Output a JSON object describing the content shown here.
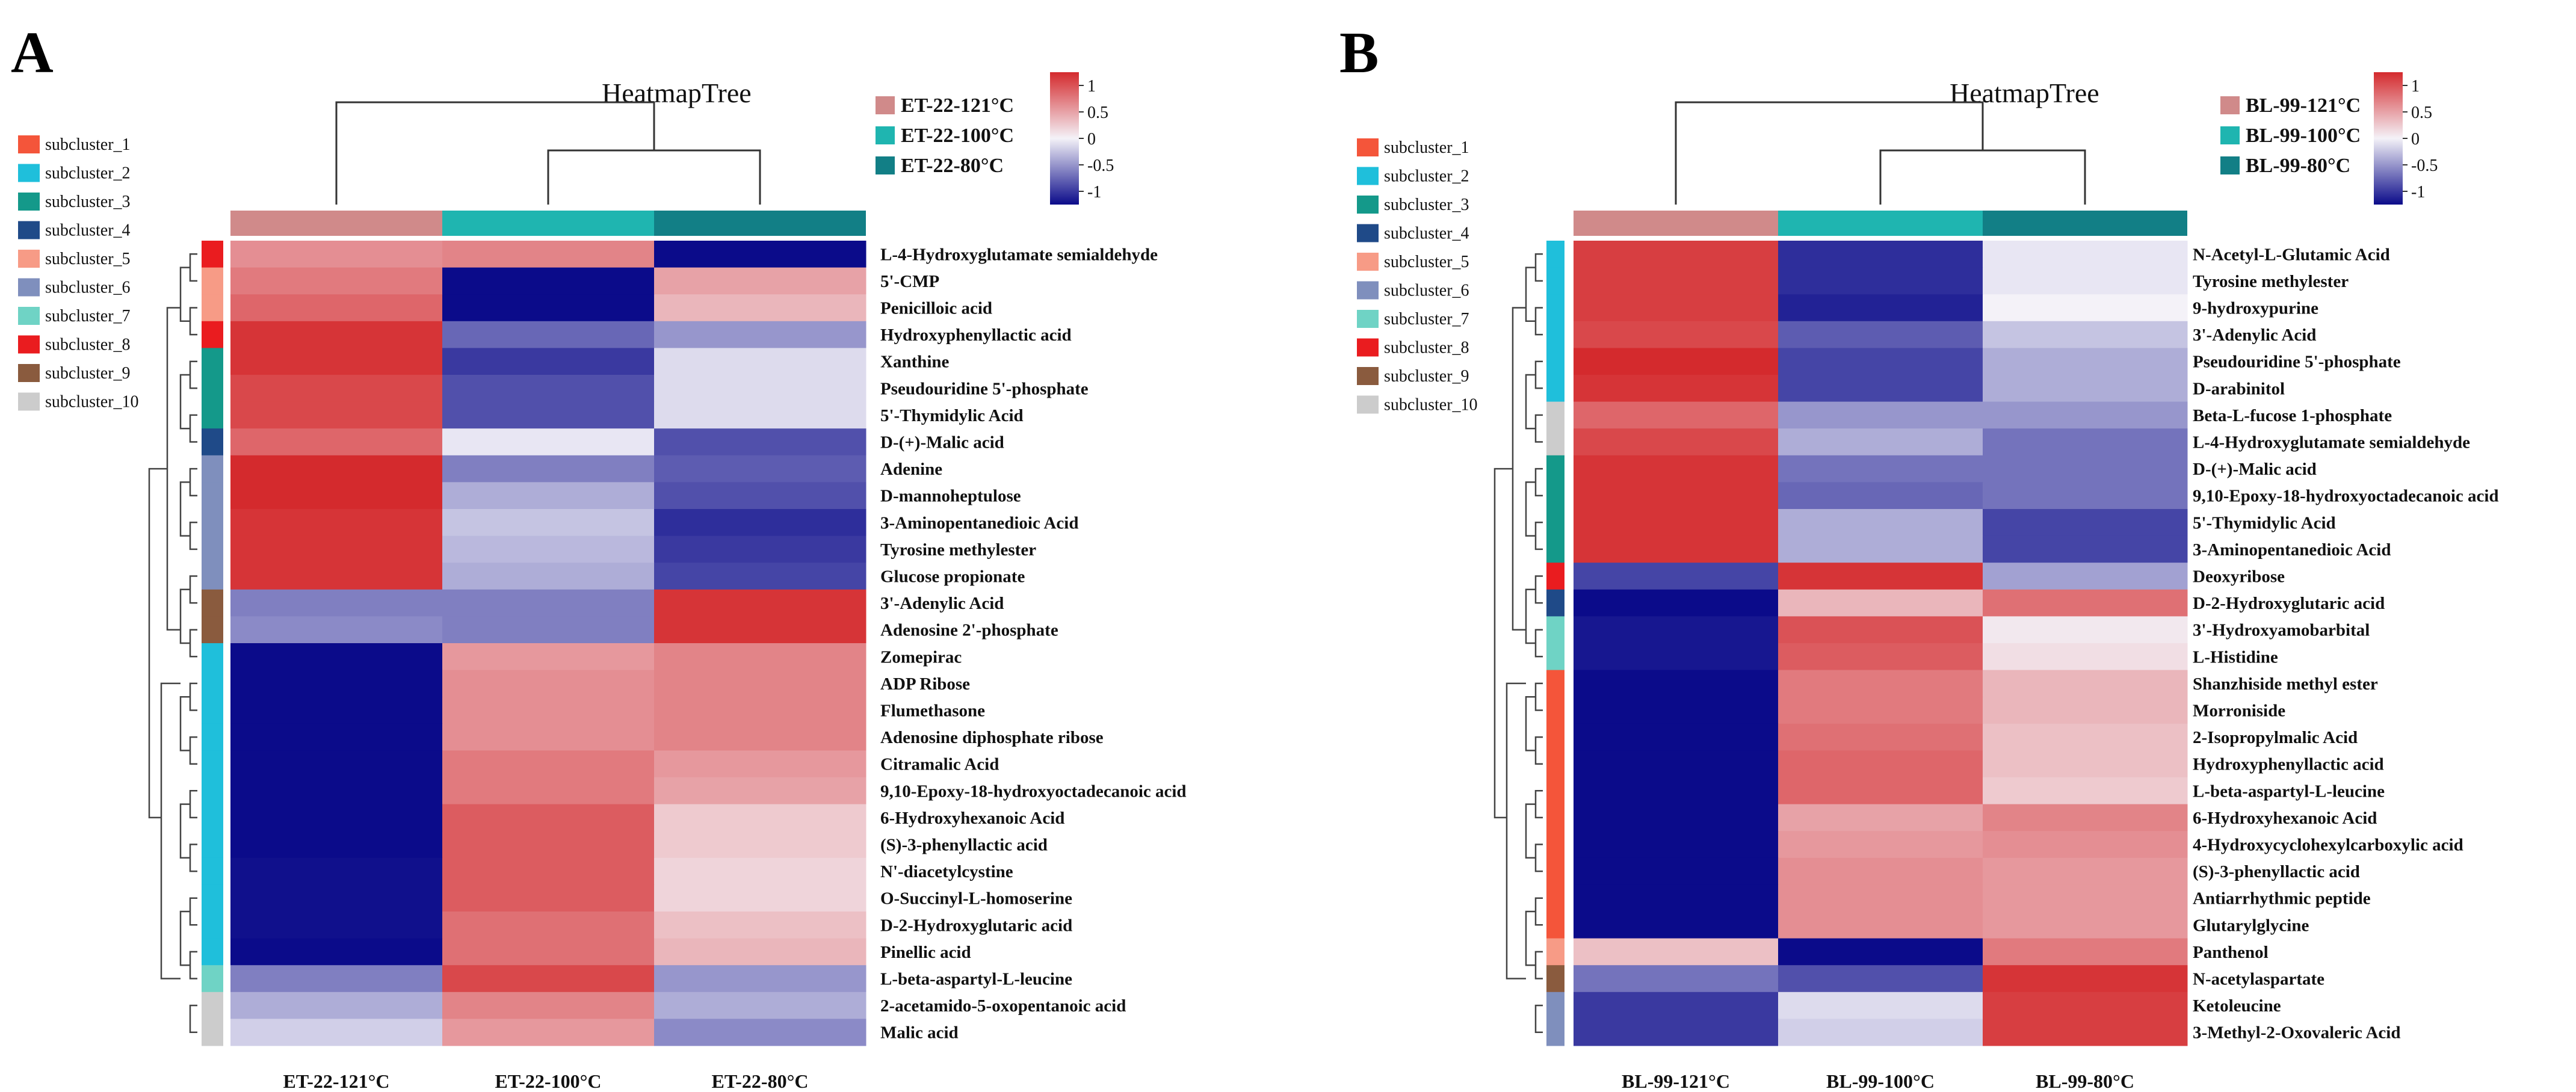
{
  "colors": {
    "high": "#d42a2d",
    "mid": "#f4f2f8",
    "low": "#0b0b8a"
  },
  "subcluster_colors": [
    "#f4553a",
    "#1fbfdb",
    "#14998a",
    "#1f4a88",
    "#f79b86",
    "#7f8fbd",
    "#6fd3c5",
    "#ea1c1f",
    "#8a5b3e",
    "#cccccc"
  ],
  "chart_data": [
    {
      "type": "heatmap",
      "panel_letter": "A",
      "title": "HeatmapTree",
      "color_scale": {
        "min": -1,
        "max": 1,
        "ticks": [
          "1",
          "0.5",
          "0",
          "-0.5",
          "-1"
        ]
      },
      "legend_groups": [
        "ET-22-121°C",
        "ET-22-100°C",
        "ET-22-80°C"
      ],
      "group_colors": [
        "#d08a8a",
        "#1fb5b0",
        "#127f86"
      ],
      "subcluster_labels": [
        "subcluster_1",
        "subcluster_2",
        "subcluster_3",
        "subcluster_4",
        "subcluster_5",
        "subcluster_6",
        "subcluster_7",
        "subcluster_8",
        "subcluster_9",
        "subcluster_10"
      ],
      "columns": [
        "ET-22-121°C",
        "ET-22-100°C",
        "ET-22-80°C"
      ],
      "rows": [
        "L-4-Hydroxyglutamate semialdehyde",
        "5'-CMP",
        "Penicilloic acid",
        "Hydroxyphenyllactic acid",
        "Xanthine",
        "Pseudouridine 5'-phosphate",
        "5'-Thymidylic Acid",
        "D-(+)-Malic acid",
        "Adenine",
        "D-mannoheptulose",
        "3-Aminopentanedioic Acid",
        "Tyrosine methylester",
        "Glucose propionate",
        "3'-Adenylic Acid",
        "Adenosine 2'-phosphate",
        "Zomepirac",
        "ADP Ribose",
        "Flumethasone",
        "Adenosine diphosphate ribose",
        "Citramalic Acid",
        "9,10-Epoxy-18-hydroxyoctadecanoic acid",
        "6-Hydroxyhexanoic Acid",
        "(S)-3-phenyllactic acid",
        "N'-diacetylcystine",
        "O-Succinyl-L-homoserine",
        "D-2-Hydroxyglutaric acid",
        "Pinellic acid",
        "L-beta-aspartyl-L-leucine",
        "2-acetamido-5-oxopentanoic acid",
        "Malic acid"
      ],
      "row_subcluster": [
        8,
        5,
        5,
        8,
        3,
        3,
        3,
        4,
        6,
        6,
        6,
        6,
        6,
        9,
        9,
        2,
        2,
        2,
        2,
        2,
        2,
        2,
        2,
        2,
        2,
        2,
        2,
        7,
        10,
        10
      ],
      "values": [
        [
          0.5,
          0.55,
          -1.0
        ],
        [
          0.6,
          -1.0,
          0.4
        ],
        [
          0.7,
          -1.0,
          0.3
        ],
        [
          0.95,
          -0.6,
          -0.4
        ],
        [
          0.95,
          -0.8,
          -0.1
        ],
        [
          0.85,
          -0.7,
          -0.1
        ],
        [
          0.85,
          -0.7,
          -0.1
        ],
        [
          0.7,
          -0.05,
          -0.7
        ],
        [
          1.0,
          -0.5,
          -0.65
        ],
        [
          1.0,
          -0.3,
          -0.7
        ],
        [
          0.95,
          -0.2,
          -0.85
        ],
        [
          0.95,
          -0.25,
          -0.8
        ],
        [
          0.95,
          -0.3,
          -0.75
        ],
        [
          -0.5,
          -0.5,
          0.95
        ],
        [
          -0.45,
          -0.5,
          0.95
        ],
        [
          -1.0,
          0.45,
          0.55
        ],
        [
          -1.0,
          0.5,
          0.55
        ],
        [
          -1.0,
          0.5,
          0.55
        ],
        [
          -1.0,
          0.5,
          0.55
        ],
        [
          -1.0,
          0.6,
          0.45
        ],
        [
          -1.0,
          0.6,
          0.4
        ],
        [
          -1.0,
          0.75,
          0.2
        ],
        [
          -1.0,
          0.75,
          0.2
        ],
        [
          -0.98,
          0.75,
          0.15
        ],
        [
          -0.98,
          0.75,
          0.15
        ],
        [
          -0.98,
          0.65,
          0.25
        ],
        [
          -1.0,
          0.65,
          0.3
        ],
        [
          -0.5,
          0.85,
          -0.4
        ],
        [
          -0.3,
          0.55,
          -0.3
        ],
        [
          -0.15,
          0.45,
          -0.45
        ]
      ]
    },
    {
      "type": "heatmap",
      "panel_letter": "B",
      "title": "HeatmapTree",
      "color_scale": {
        "min": -1,
        "max": 1,
        "ticks": [
          "1",
          "0.5",
          "0",
          "-0.5",
          "-1"
        ]
      },
      "legend_groups": [
        "BL-99-121°C",
        "BL-99-100°C",
        "BL-99-80°C"
      ],
      "group_colors": [
        "#d08a8a",
        "#1fb5b0",
        "#127f86"
      ],
      "subcluster_labels": [
        "subcluster_1",
        "subcluster_2",
        "subcluster_3",
        "subcluster_4",
        "subcluster_5",
        "subcluster_6",
        "subcluster_7",
        "subcluster_8",
        "subcluster_9",
        "subcluster_10"
      ],
      "columns": [
        "BL-99-121°C",
        "BL-99-100°C",
        "BL-99-80°C"
      ],
      "rows": [
        "N-Acetyl-L-Glutamic Acid",
        "Tyrosine methylester",
        "9-hydroxypurine",
        "3'-Adenylic Acid",
        "Pseudouridine 5'-phosphate",
        "D-arabinitol",
        "Beta-L-fucose 1-phosphate",
        "L-4-Hydroxyglutamate semialdehyde",
        "D-(+)-Malic acid",
        "9,10-Epoxy-18-hydroxyoctadecanoic acid",
        "5'-Thymidylic Acid",
        "3-Aminopentanedioic Acid",
        "Deoxyribose",
        "D-2-Hydroxyglutaric acid",
        "3'-Hydroxyamobarbital",
        "L-Histidine",
        "Shanzhiside methyl ester",
        "Morroniside",
        "2-Isopropylmalic Acid",
        "Hydroxyphenyllactic acid",
        "L-beta-aspartyl-L-leucine",
        "6-Hydroxyhexanoic Acid",
        "4-Hydroxycyclohexylcarboxylic acid",
        "(S)-3-phenyllactic acid",
        "Antiarrhythmic peptide",
        "Glutarylglycine",
        "Panthenol",
        "N-acetylaspartate",
        "Ketoleucine",
        "3-Methyl-2-Oxovaleric Acid"
      ],
      "row_subcluster": [
        2,
        2,
        2,
        2,
        2,
        2,
        10,
        10,
        3,
        3,
        3,
        3,
        8,
        4,
        7,
        7,
        1,
        1,
        1,
        1,
        1,
        1,
        1,
        1,
        1,
        1,
        5,
        9,
        6,
        6
      ],
      "values": [
        [
          0.9,
          -0.85,
          -0.05
        ],
        [
          0.9,
          -0.85,
          -0.05
        ],
        [
          0.9,
          -0.9,
          0.0
        ],
        [
          0.85,
          -0.65,
          -0.2
        ],
        [
          1.0,
          -0.75,
          -0.3
        ],
        [
          0.95,
          -0.75,
          -0.3
        ],
        [
          0.7,
          -0.4,
          -0.4
        ],
        [
          0.85,
          -0.3,
          -0.55
        ],
        [
          0.95,
          -0.55,
          -0.55
        ],
        [
          0.95,
          -0.6,
          -0.55
        ],
        [
          0.95,
          -0.3,
          -0.75
        ],
        [
          0.95,
          -0.3,
          -0.75
        ],
        [
          -0.75,
          0.95,
          -0.35
        ],
        [
          -1.0,
          0.3,
          0.65
        ],
        [
          -0.95,
          0.8,
          0.05
        ],
        [
          -0.95,
          0.75,
          0.1
        ],
        [
          -1.0,
          0.6,
          0.3
        ],
        [
          -1.0,
          0.6,
          0.3
        ],
        [
          -1.0,
          0.65,
          0.25
        ],
        [
          -1.0,
          0.7,
          0.25
        ],
        [
          -1.0,
          0.7,
          0.2
        ],
        [
          -1.0,
          0.4,
          0.55
        ],
        [
          -1.0,
          0.45,
          0.5
        ],
        [
          -1.0,
          0.5,
          0.45
        ],
        [
          -1.0,
          0.5,
          0.45
        ],
        [
          -1.0,
          0.5,
          0.45
        ],
        [
          0.25,
          -1.0,
          0.6
        ],
        [
          -0.55,
          -0.7,
          0.95
        ],
        [
          -0.8,
          -0.1,
          0.9
        ],
        [
          -0.8,
          -0.15,
          0.9
        ]
      ]
    }
  ]
}
